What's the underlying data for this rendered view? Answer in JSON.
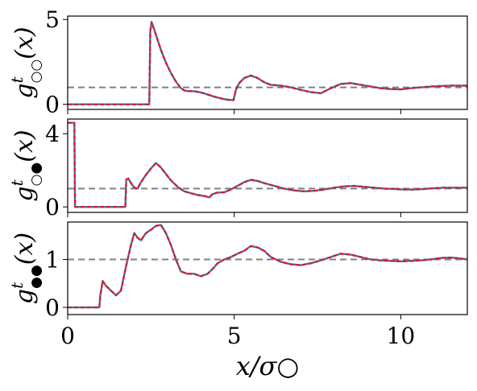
{
  "figure": {
    "xlabel": "x/σ○"
  },
  "chart_data": [
    {
      "type": "line",
      "ylabel": "g_{○○}^t(x)",
      "ylabel_main": "g",
      "ylabel_sup": "t",
      "ylabel_sub": "○○",
      "ylabel_arg": "(x)",
      "xlim": [
        0,
        12
      ],
      "ylim": [
        -0.3,
        5.2
      ],
      "xticks": [
        0,
        5,
        10
      ],
      "yticks": [
        0,
        5
      ],
      "yticklabels": [
        "0",
        "5"
      ],
      "show_xticklabels": false,
      "reference_y": 1,
      "series": [
        {
          "x": [
            0,
            2.45,
            2.48,
            2.52,
            2.6,
            2.7,
            2.8,
            2.9,
            3.0,
            3.1,
            3.2,
            3.3,
            3.4,
            3.5,
            3.6,
            3.8,
            4.0,
            4.2,
            4.4,
            4.6,
            4.8,
            4.98,
            5.05,
            5.15,
            5.3,
            5.5,
            5.7,
            5.9,
            6.1,
            6.4,
            6.7,
            7.0,
            7.3,
            7.6,
            7.9,
            8.2,
            8.5,
            8.8,
            9.1,
            9.4,
            9.7,
            10.0,
            10.3,
            10.6,
            10.9,
            11.2,
            11.5,
            11.8,
            12.0
          ],
          "y": [
            0.0,
            0.0,
            4.3,
            4.85,
            4.4,
            3.8,
            3.2,
            2.7,
            2.25,
            1.85,
            1.5,
            1.2,
            0.95,
            0.82,
            0.78,
            0.77,
            0.7,
            0.58,
            0.45,
            0.35,
            0.27,
            0.25,
            0.85,
            1.25,
            1.55,
            1.7,
            1.55,
            1.3,
            1.15,
            1.1,
            1.0,
            0.85,
            0.72,
            0.65,
            0.95,
            1.2,
            1.25,
            1.15,
            1.05,
            0.95,
            0.9,
            0.88,
            0.95,
            1.0,
            1.05,
            1.08,
            1.1,
            1.1,
            1.1
          ]
        }
      ]
    },
    {
      "type": "line",
      "ylabel": "g_{○●}^t(x)",
      "ylabel_main": "g",
      "ylabel_sup": "t",
      "ylabel_sub": "○●",
      "ylabel_arg": "(x)",
      "xlim": [
        0,
        12
      ],
      "ylim": [
        -0.3,
        4.8
      ],
      "xticks": [
        0,
        5,
        10
      ],
      "yticks": [
        0,
        4
      ],
      "yticklabels": [
        "0",
        "4"
      ],
      "show_xticklabels": false,
      "reference_y": 1,
      "series": [
        {
          "x": [
            0,
            0.2,
            0.22,
            1.73,
            1.76,
            1.82,
            1.9,
            2.0,
            2.1,
            2.2,
            2.35,
            2.5,
            2.65,
            2.8,
            2.95,
            3.1,
            3.3,
            3.5,
            3.7,
            3.9,
            4.1,
            4.25,
            4.35,
            4.5,
            4.7,
            4.9,
            5.1,
            5.3,
            5.5,
            5.7,
            5.9,
            6.2,
            6.5,
            6.8,
            7.1,
            7.4,
            7.7,
            8.0,
            8.3,
            8.6,
            8.9,
            9.2,
            9.5,
            9.8,
            10.1,
            10.4,
            10.7,
            11.0,
            11.3,
            11.6,
            12.0
          ],
          "y": [
            4.6,
            4.6,
            0.0,
            0.0,
            1.5,
            1.55,
            1.3,
            1.05,
            1.0,
            1.35,
            1.75,
            2.1,
            2.4,
            2.15,
            1.8,
            1.45,
            1.1,
            0.85,
            0.75,
            0.65,
            0.6,
            0.52,
            0.7,
            0.78,
            0.8,
            0.95,
            1.15,
            1.35,
            1.48,
            1.42,
            1.3,
            1.15,
            1.0,
            0.9,
            0.85,
            0.88,
            0.95,
            1.05,
            1.12,
            1.15,
            1.1,
            1.05,
            1.0,
            0.98,
            0.95,
            0.95,
            0.98,
            1.02,
            1.05,
            1.05,
            1.05
          ]
        }
      ]
    },
    {
      "type": "line",
      "ylabel": "g_{●●}^t(x)",
      "ylabel_main": "g",
      "ylabel_sup": "t",
      "ylabel_sub": "●●",
      "ylabel_arg": "(x)",
      "xlim": [
        0,
        12
      ],
      "ylim": [
        -0.15,
        1.78
      ],
      "xticks": [
        0,
        5,
        10
      ],
      "xticklabels": [
        "0",
        "5",
        "10"
      ],
      "yticks": [
        0,
        1
      ],
      "yticklabels": [
        "0",
        "1"
      ],
      "show_xticklabels": true,
      "reference_y": 1,
      "series": [
        {
          "x": [
            0,
            0.95,
            0.98,
            1.05,
            1.15,
            1.3,
            1.45,
            1.6,
            1.75,
            1.9,
            2.0,
            2.1,
            2.2,
            2.35,
            2.5,
            2.65,
            2.8,
            2.95,
            3.1,
            3.25,
            3.4,
            3.6,
            3.8,
            4.0,
            4.2,
            4.35,
            4.5,
            4.7,
            4.9,
            5.1,
            5.3,
            5.5,
            5.7,
            5.9,
            6.1,
            6.4,
            6.7,
            7.0,
            7.3,
            7.6,
            7.9,
            8.2,
            8.5,
            8.8,
            9.1,
            9.4,
            9.7,
            10.0,
            10.3,
            10.6,
            10.9,
            11.2,
            11.5,
            11.8,
            12.0
          ],
          "y": [
            0.0,
            0.0,
            0.25,
            0.55,
            0.45,
            0.35,
            0.25,
            0.35,
            0.85,
            1.3,
            1.55,
            1.45,
            1.4,
            1.55,
            1.62,
            1.7,
            1.72,
            1.55,
            1.3,
            1.0,
            0.75,
            0.7,
            0.7,
            0.65,
            0.7,
            0.8,
            0.92,
            1.0,
            1.05,
            1.12,
            1.18,
            1.28,
            1.25,
            1.18,
            1.05,
            0.95,
            0.9,
            0.88,
            0.92,
            0.98,
            1.05,
            1.12,
            1.1,
            1.05,
            1.0,
            0.98,
            0.97,
            0.96,
            0.97,
            0.98,
            1.0,
            1.03,
            1.04,
            1.02,
            1.0
          ]
        }
      ]
    }
  ]
}
